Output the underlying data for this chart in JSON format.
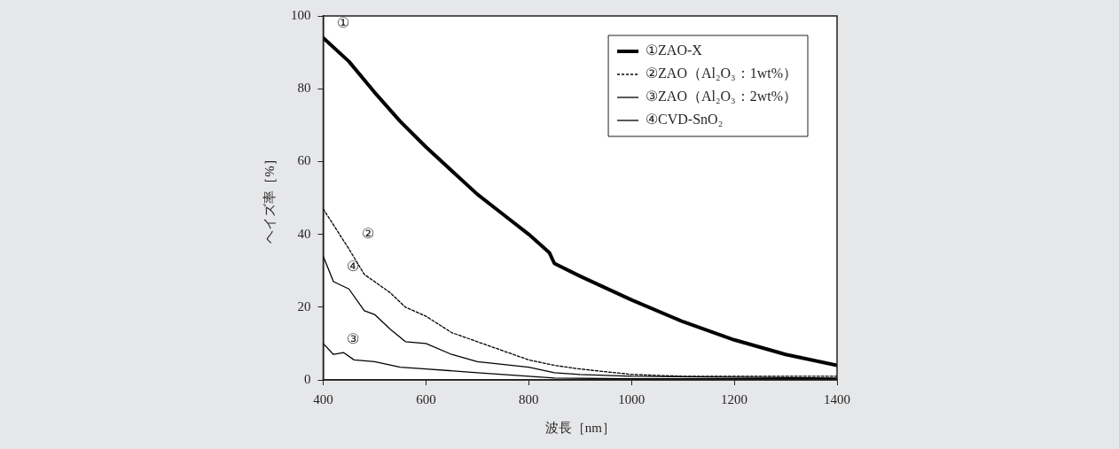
{
  "chart_data": {
    "type": "line",
    "xlabel": "波長［nm］",
    "ylabel": "ヘイズ率［%］",
    "xlim": [
      400,
      1400
    ],
    "xticks": [
      400,
      600,
      800,
      1000,
      1200,
      1400
    ],
    "ylim": [
      0,
      100
    ],
    "yticks": [
      0,
      20,
      40,
      60,
      80,
      100
    ],
    "grid": false,
    "legend": "top right",
    "marker": "none",
    "series": [
      {
        "name": "①ZAO-X",
        "color": "#000000",
        "line_style": "solid",
        "x": [
          400,
          450,
          500,
          550,
          600,
          650,
          700,
          750,
          800,
          840,
          850,
          900,
          1000,
          1100,
          1200,
          1300,
          1400
        ],
        "values": [
          94,
          87.5,
          79,
          71,
          64,
          57.5,
          51,
          45.5,
          40,
          35,
          32,
          28.5,
          22,
          16,
          11,
          7,
          4
        ]
      },
      {
        "name": "②ZAO（Al₂O₃：1wt%）",
        "color": "#000000",
        "line_style": "dashed",
        "x": [
          400,
          450,
          480,
          500,
          530,
          560,
          600,
          650,
          700,
          750,
          800,
          850,
          900,
          1000,
          1100,
          1200,
          1400
        ],
        "values": [
          47,
          36,
          29,
          27,
          24,
          20,
          17.5,
          13,
          10.5,
          8,
          5.5,
          4,
          3,
          1.5,
          1,
          1,
          1
        ]
      },
      {
        "name": "③ZAO（Al₂O₃：2wt%）",
        "color": "#000000",
        "line_style": "solid",
        "x": [
          400,
          420,
          440,
          460,
          500,
          550,
          600,
          700,
          800,
          850,
          1000,
          1400
        ],
        "values": [
          10,
          7,
          7.5,
          5.5,
          5,
          3.5,
          3,
          2,
          1,
          0.5,
          0.3,
          0.3
        ]
      },
      {
        "name": "④CVD-SnO₂",
        "color": "#000000",
        "line_style": "solid",
        "x": [
          400,
          420,
          450,
          480,
          500,
          530,
          560,
          600,
          650,
          700,
          800,
          850,
          900,
          1000,
          1400
        ],
        "values": [
          34,
          27,
          25,
          19,
          18,
          14,
          10.5,
          10,
          7,
          5,
          3.5,
          2,
          1.5,
          1,
          0.5
        ]
      }
    ],
    "annotations": [
      {
        "text": "①",
        "x": 400,
        "y": 94
      },
      {
        "text": "②",
        "x": 450,
        "y": 36
      },
      {
        "text": "③",
        "x": 420,
        "y": 7
      },
      {
        "text": "④",
        "x": 420,
        "y": 27
      }
    ]
  }
}
